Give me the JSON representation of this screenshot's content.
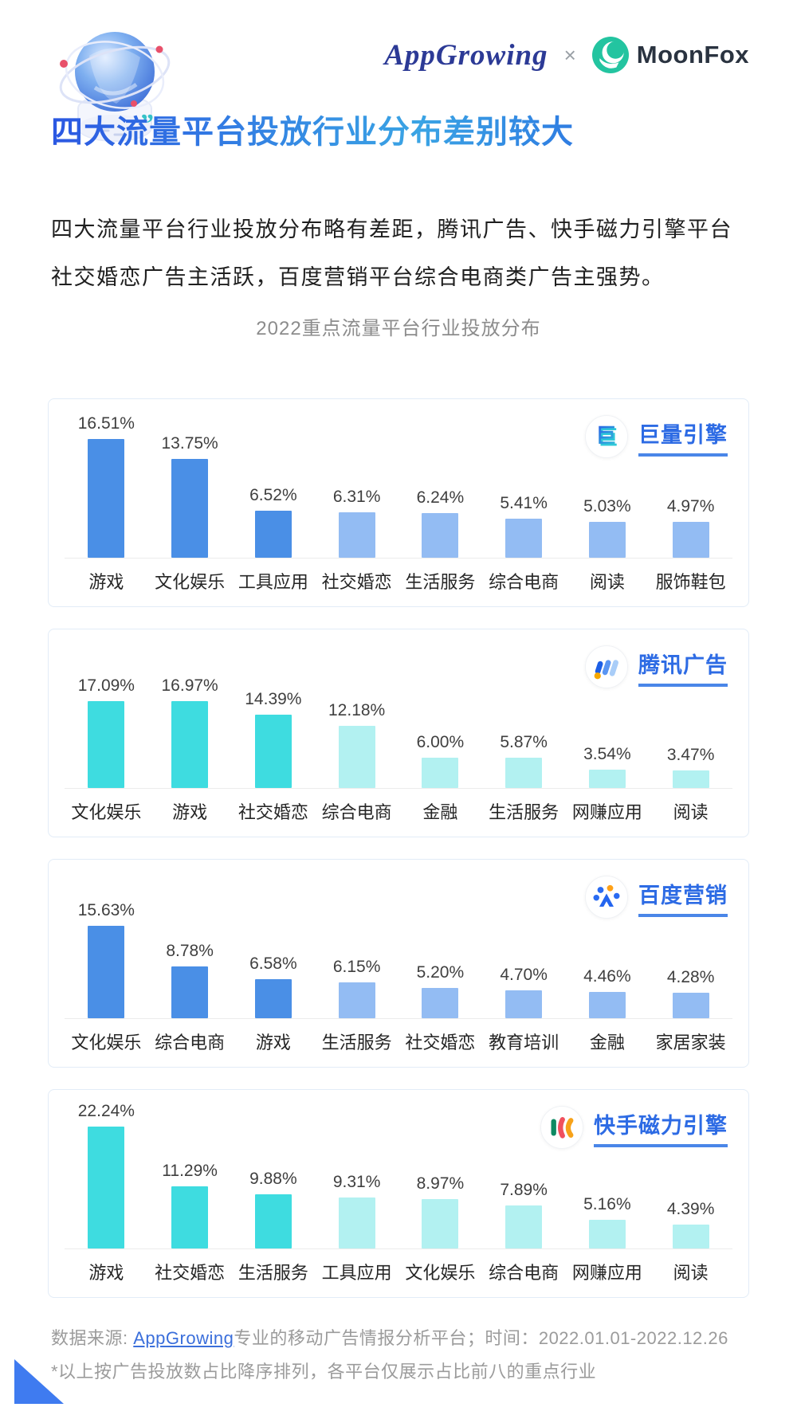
{
  "header": {
    "brand_left": "AppGrowing",
    "separator": "×",
    "brand_right": "MoonFox"
  },
  "title": "四大流量平台投放行业分布差别较大",
  "intro": "四大流量平台行业投放分布略有差距，腾讯广告、快手磁力引擎平台社交婚恋广告主活跃，百度营销平台综合电商类广告主强势。",
  "section_title": "2022重点流量平台行业投放分布",
  "chart_data": [
    {
      "type": "bar",
      "platform": "巨量引擎",
      "icon": "ocean-engine-icon",
      "categories": [
        "游戏",
        "文化娱乐",
        "工具应用",
        "社交婚恋",
        "生活服务",
        "综合电商",
        "阅读",
        "服饰鞋包"
      ],
      "values": [
        16.51,
        13.75,
        6.52,
        6.31,
        6.24,
        5.41,
        5.03,
        4.97
      ],
      "value_unit": "%",
      "dark_bar_count": 3,
      "color_dark": "#4a8fe6",
      "color_light": "#93bcf3",
      "legend_position": "top-right",
      "grid": false,
      "ylim": [
        0,
        18
      ]
    },
    {
      "type": "bar",
      "platform": "腾讯广告",
      "icon": "tencent-ads-icon",
      "categories": [
        "文化娱乐",
        "游戏",
        "社交婚恋",
        "综合电商",
        "金融",
        "生活服务",
        "网赚应用",
        "阅读"
      ],
      "values": [
        17.09,
        16.97,
        14.39,
        12.18,
        6.0,
        5.87,
        3.54,
        3.47
      ],
      "value_unit": "%",
      "dark_bar_count": 3,
      "color_dark": "#3edce0",
      "color_light": "#b2f1f1",
      "legend_position": "top-right",
      "grid": false,
      "ylim": [
        0,
        18
      ]
    },
    {
      "type": "bar",
      "platform": "百度营销",
      "icon": "baidu-marketing-icon",
      "categories": [
        "文化娱乐",
        "综合电商",
        "游戏",
        "生活服务",
        "社交婚恋",
        "教育培训",
        "金融",
        "家居家装"
      ],
      "values": [
        15.63,
        8.78,
        6.58,
        6.15,
        5.2,
        4.7,
        4.46,
        4.28
      ],
      "value_unit": "%",
      "dark_bar_count": 3,
      "color_dark": "#4a8fe6",
      "color_light": "#93bcf3",
      "legend_position": "top-right",
      "grid": false,
      "ylim": [
        0,
        16
      ]
    },
    {
      "type": "bar",
      "platform": "快手磁力引擎",
      "icon": "kuaishou-engine-icon",
      "categories": [
        "游戏",
        "社交婚恋",
        "生活服务",
        "工具应用",
        "文化娱乐",
        "综合电商",
        "网赚应用",
        "阅读"
      ],
      "values": [
        22.24,
        11.29,
        9.88,
        9.31,
        8.97,
        7.89,
        5.16,
        4.39
      ],
      "value_unit": "%",
      "dark_bar_count": 3,
      "color_dark": "#3edce0",
      "color_light": "#b2f1f1",
      "legend_position": "top-right",
      "grid": false,
      "ylim": [
        0,
        24
      ]
    }
  ],
  "footer": {
    "source_prefix": "数据来源:",
    "source_link": "AppGrowing",
    "source_suffix": "专业的移动广告情报分析平台；时间：2022.01.01-2022.12.26",
    "note": "*以上按广告投放数占比降序排列，各平台仅展示占比前八的重点行业"
  },
  "colors": {
    "accent_blue": "#2d6be4",
    "underline_blue": "#4a86e8",
    "bar_blue_dark": "#4a8fe6",
    "bar_blue_light": "#93bcf3",
    "bar_cyan_dark": "#3edce0",
    "bar_cyan_light": "#b2f1f1",
    "title_gradient_start": "#2b57e2",
    "title_gradient_end": "#3aa4e4",
    "moonfox_teal": "#23c4a0",
    "triangle_blue": "#3f7bf0"
  }
}
